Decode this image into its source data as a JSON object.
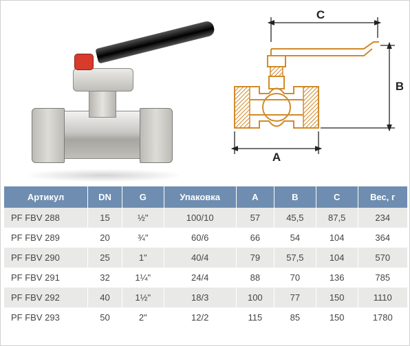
{
  "diagram": {
    "labels": {
      "A": "A",
      "B": "B",
      "C": "C"
    },
    "stroke_color": "#d08a2a",
    "dim_color": "#222222"
  },
  "table": {
    "header_bg": "#6e8db0",
    "row_odd_bg": "#e9e9e8",
    "row_even_bg": "#ffffff",
    "columns": [
      {
        "key": "article",
        "label": "Артикул",
        "class": "col-art"
      },
      {
        "key": "dn",
        "label": "DN",
        "class": "col-dn"
      },
      {
        "key": "g",
        "label": "G",
        "class": "col-g"
      },
      {
        "key": "pkg",
        "label": "Упаковка",
        "class": "col-pkg"
      },
      {
        "key": "a",
        "label": "A",
        "class": "col-a"
      },
      {
        "key": "b",
        "label": "B",
        "class": "col-b"
      },
      {
        "key": "c",
        "label": "C",
        "class": "col-c"
      },
      {
        "key": "weight",
        "label": "Вес, г",
        "class": "col-w"
      }
    ],
    "rows": [
      {
        "article": "PF FBV 288",
        "dn": "15",
        "g": "½\"",
        "pkg": "100/10",
        "a": "57",
        "b": "45,5",
        "c": "87,5",
        "weight": "234"
      },
      {
        "article": "PF FBV 289",
        "dn": "20",
        "g": "¾\"",
        "pkg": "60/6",
        "a": "66",
        "b": "54",
        "c": "104",
        "weight": "364"
      },
      {
        "article": "PF FBV 290",
        "dn": "25",
        "g": "1\"",
        "pkg": "40/4",
        "a": "79",
        "b": "57,5",
        "c": "104",
        "weight": "570"
      },
      {
        "article": "PF FBV 291",
        "dn": "32",
        "g": "1¼\"",
        "pkg": "24/4",
        "a": "88",
        "b": "70",
        "c": "136",
        "weight": "785"
      },
      {
        "article": "PF FBV 292",
        "dn": "40",
        "g": "1½\"",
        "pkg": "18/3",
        "a": "100",
        "b": "77",
        "c": "150",
        "weight": "1110"
      },
      {
        "article": "PF FBV 293",
        "dn": "50",
        "g": "2\"",
        "pkg": "12/2",
        "a": "115",
        "b": "85",
        "c": "150",
        "weight": "1780"
      }
    ]
  }
}
